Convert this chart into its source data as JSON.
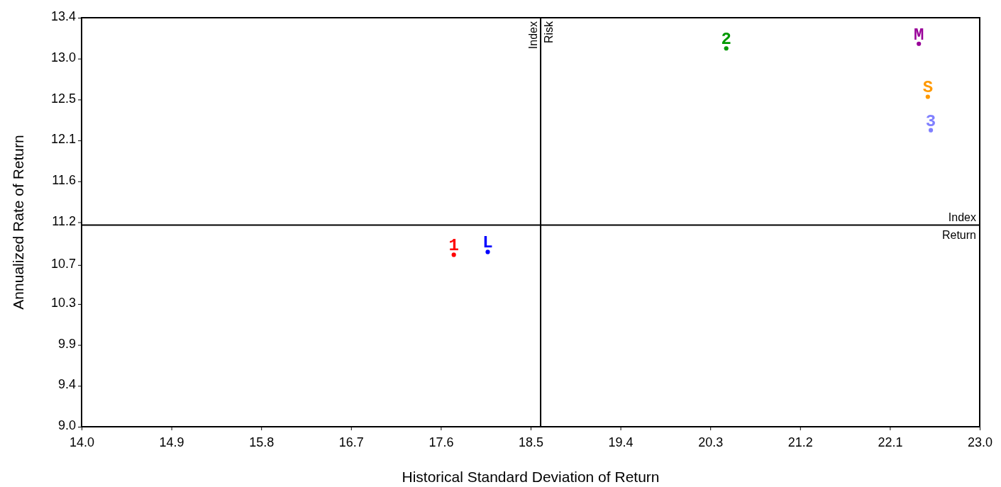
{
  "chart_data": {
    "type": "scatter",
    "xlabel": "Historical Standard Deviation of Return",
    "ylabel": "Annualized Rate of Return",
    "xlim": [
      14.0,
      23.0
    ],
    "xticks": [
      {
        "value": 14.0,
        "label": "14.0"
      },
      {
        "value": 14.9,
        "label": "14.9"
      },
      {
        "value": 15.8,
        "label": "15.8"
      },
      {
        "value": 16.7,
        "label": "16.7"
      },
      {
        "value": 17.6,
        "label": "17.6"
      },
      {
        "value": 18.5,
        "label": "18.5"
      },
      {
        "value": 19.4,
        "label": "19.4"
      },
      {
        "value": 20.3,
        "label": "20.3"
      },
      {
        "value": 21.2,
        "label": "21.2"
      },
      {
        "value": 22.1,
        "label": "22.1"
      },
      {
        "value": 23.0,
        "label": "23.0"
      }
    ],
    "ylim": [
      9.0,
      13.4
    ],
    "yticks": [
      {
        "value": 9.0,
        "label": "9.0"
      },
      {
        "value": 9.44,
        "label": "9.4"
      },
      {
        "value": 9.88,
        "label": "9.9"
      },
      {
        "value": 10.32,
        "label": "10.3"
      },
      {
        "value": 10.74,
        "label": "10.7"
      },
      {
        "value": 11.2,
        "label": "11.2"
      },
      {
        "value": 11.64,
        "label": "11.6"
      },
      {
        "value": 12.08,
        "label": "12.1"
      },
      {
        "value": 12.52,
        "label": "12.5"
      },
      {
        "value": 12.96,
        "label": "13.0"
      },
      {
        "value": 13.4,
        "label": "13.4"
      }
    ],
    "series": [
      {
        "name": "1",
        "color": "#ff0000",
        "x": [
          17.73
        ],
        "values": [
          10.85
        ]
      },
      {
        "name": "L",
        "color": "#0000ff",
        "x": [
          18.07
        ],
        "values": [
          10.88
        ]
      },
      {
        "name": "2",
        "color": "#009900",
        "x": [
          20.46
        ],
        "values": [
          13.07
        ]
      },
      {
        "name": "M",
        "color": "#990099",
        "x": [
          22.39
        ],
        "values": [
          13.12
        ]
      },
      {
        "name": "S",
        "color": "#ff9900",
        "x": [
          22.48
        ],
        "values": [
          12.55
        ]
      },
      {
        "name": "3",
        "color": "#8080ff",
        "x": [
          22.51
        ],
        "values": [
          12.19
        ]
      }
    ],
    "ref_lines": [
      {
        "axis": "x",
        "value": 18.6,
        "label": "Index Risk"
      },
      {
        "axis": "y",
        "value": 11.17,
        "label": "Index Return"
      }
    ],
    "grid": false,
    "legend": false,
    "marker": "circle"
  }
}
